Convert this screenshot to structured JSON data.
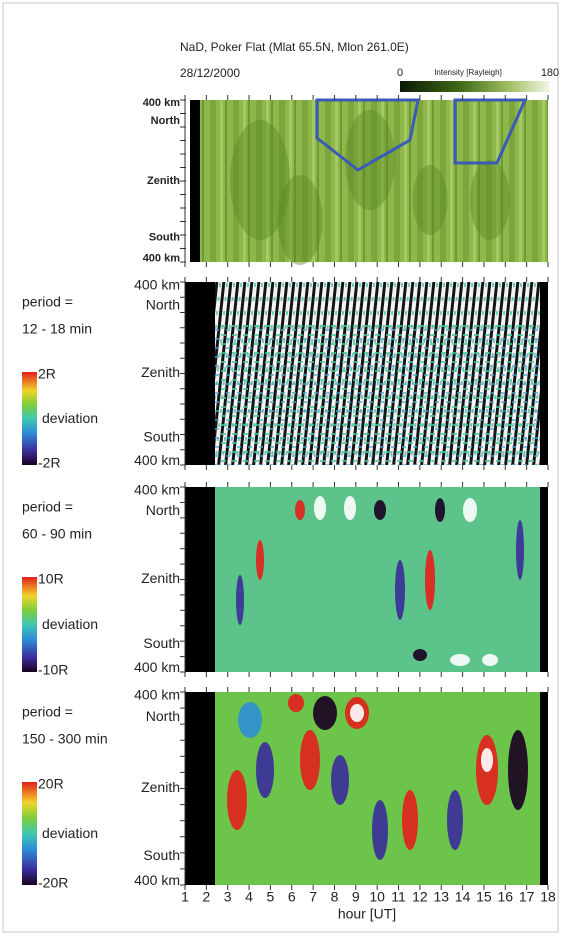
{
  "header": {
    "title": "NaD,  Poker Flat (Mlat 65.5N, Mlon 261.0E)",
    "date": "28/12/2000",
    "colorbar": {
      "min": "0",
      "label": "Intensity [Rayleigh]",
      "max": "180"
    },
    "ylabels": [
      "400 km",
      "North",
      "Zenith",
      "South",
      "400 km"
    ]
  },
  "panels": [
    {
      "period": "period =",
      "range": "12 - 18 min",
      "colorbar": {
        "max": "2R",
        "label": "deviation",
        "min": "-2R"
      },
      "ylabels": [
        "400 km",
        "North",
        "Zenith",
        "South",
        "400 km"
      ]
    },
    {
      "period": "period =",
      "range": "60 - 90 min",
      "colorbar": {
        "max": "10R",
        "label": "deviation",
        "min": "-10R"
      },
      "ylabels": [
        "400 km",
        "North",
        "Zenith",
        "South",
        "400 km"
      ]
    },
    {
      "period": "period =",
      "range": "150 - 300 min",
      "colorbar": {
        "max": "20R",
        "label": "deviation",
        "min": "-20R"
      },
      "ylabels": [
        "400 km",
        "North",
        "Zenith",
        "South",
        "400 km"
      ]
    }
  ],
  "x_axis": {
    "xlim": [
      1,
      18
    ],
    "xticks": [
      1,
      2,
      3,
      4,
      5,
      6,
      7,
      8,
      9,
      10,
      11,
      12,
      13,
      14,
      15,
      16,
      17,
      18
    ],
    "label": "hour [UT]"
  }
}
